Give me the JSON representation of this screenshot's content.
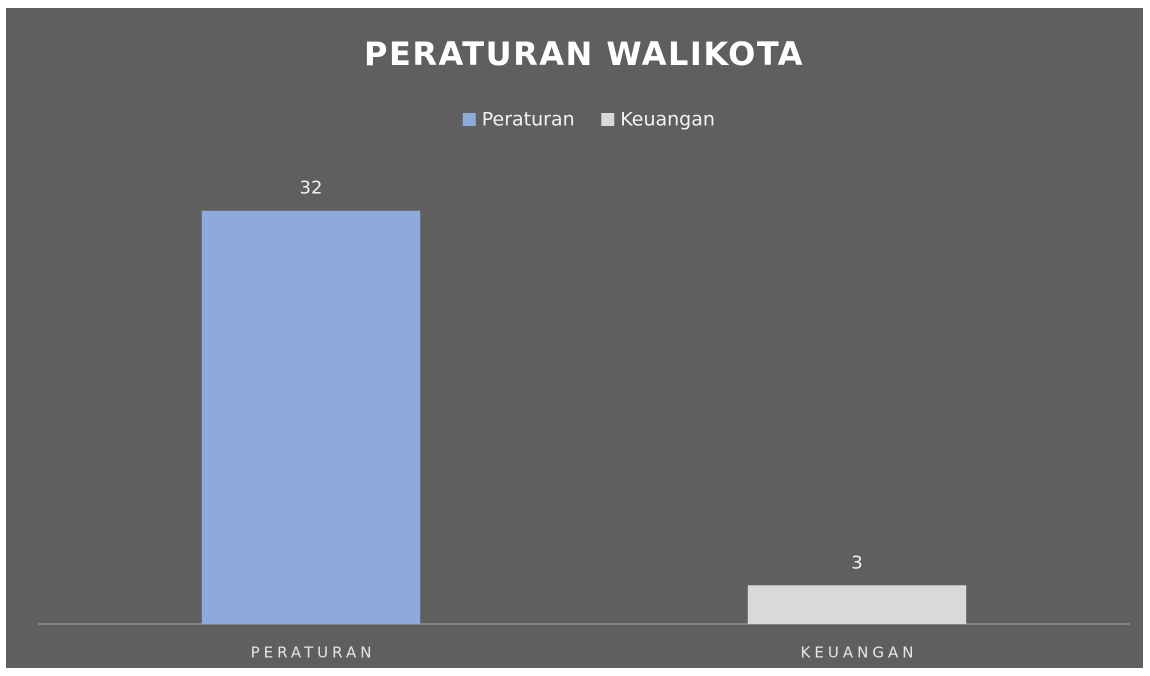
{
  "chart_data": {
    "type": "bar",
    "title": "PERATURAN WALIKOTA",
    "categories": [
      "PERATURAN",
      "KEUANGAN"
    ],
    "series": [
      {
        "name": "Peraturan",
        "color": "#8eaadb",
        "values": [
          32,
          null
        ]
      },
      {
        "name": "Keuangan",
        "color": "#d9d9d9",
        "values": [
          null,
          3
        ]
      }
    ],
    "ylim": [
      0,
      35
    ],
    "grid": false,
    "legend": "top"
  }
}
